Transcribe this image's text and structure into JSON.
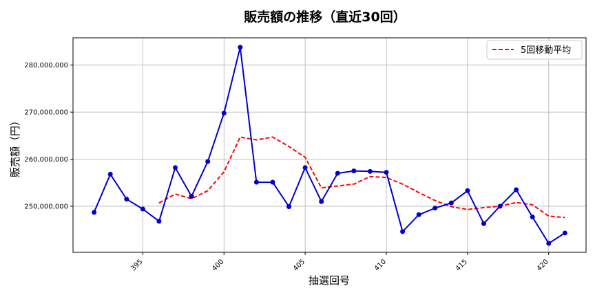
{
  "chart_data": {
    "type": "line",
    "title": "販売額の推移（直近30回）",
    "xlabel": "抽選回号",
    "ylabel": "販売額（円）",
    "xlim": [
      390.7,
      422.3
    ],
    "ylim": [
      240200000,
      285800000
    ],
    "xticks": [
      395,
      400,
      405,
      410,
      415,
      420
    ],
    "yticks": [
      250000000,
      260000000,
      270000000,
      280000000
    ],
    "ytick_labels": [
      "250,000,000",
      "260,000,000",
      "270,000,000",
      "280,000,000"
    ],
    "grid": true,
    "legend_position": "top-right",
    "x": [
      392,
      393,
      394,
      395,
      396,
      397,
      398,
      399,
      400,
      401,
      402,
      403,
      404,
      405,
      406,
      407,
      408,
      409,
      410,
      411,
      412,
      413,
      414,
      415,
      416,
      417,
      418,
      419,
      420,
      421
    ],
    "series": [
      {
        "color": "#0000cc",
        "style": "solid-with-markers",
        "values": [
          248700000,
          256800000,
          251500000,
          249400000,
          246800000,
          258200000,
          252100000,
          259500000,
          269800000,
          283800000,
          255100000,
          255100000,
          249900000,
          258200000,
          251000000,
          257000000,
          257500000,
          257400000,
          257200000,
          244600000,
          248200000,
          249600000,
          250700000,
          253300000,
          246300000,
          250000000,
          253500000,
          247700000,
          242100000,
          244300000
        ]
      },
      {
        "name": "5回移動平均",
        "color": "#ff0000",
        "style": "dashed",
        "x": [
          396,
          397,
          398,
          399,
          400,
          401,
          402,
          403,
          404,
          405,
          406,
          407,
          408,
          409,
          410,
          411,
          412,
          413,
          414,
          415,
          416,
          417,
          418,
          419,
          420,
          421
        ],
        "values": [
          250700000,
          252600000,
          251600000,
          253300000,
          257300000,
          264700000,
          264100000,
          264700000,
          262700000,
          260400000,
          253900000,
          254300000,
          254700000,
          256300000,
          256100000,
          254700000,
          252900000,
          251200000,
          249900000,
          249300000,
          249700000,
          250000000,
          250800000,
          250300000,
          247900000,
          247600000
        ]
      }
    ]
  }
}
